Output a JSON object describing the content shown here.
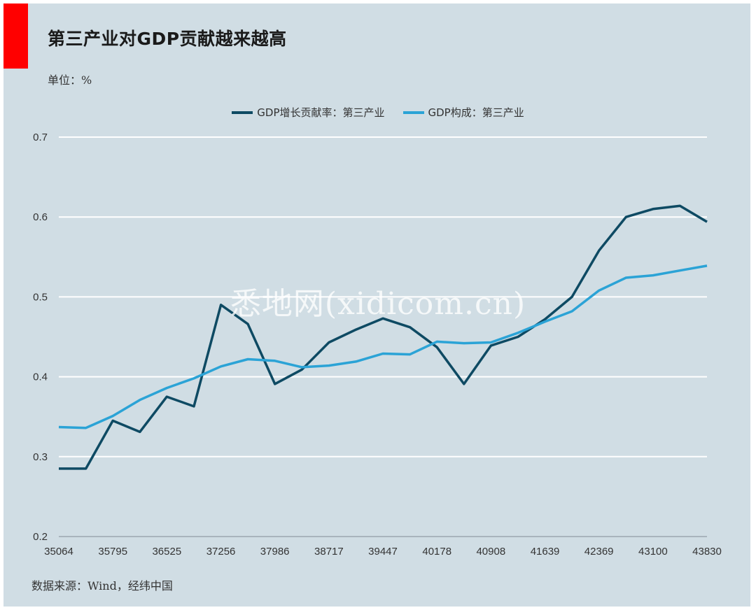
{
  "header": {
    "title": "第三产业对GDP贡献越来越高",
    "unit": "单位：%"
  },
  "footer": {
    "source": "数据来源：Wind，经纬中国"
  },
  "watermark": "悉地网(xidicom.cn)",
  "colors": {
    "background": "#d0dde4",
    "accent": "#ff0000",
    "series_dark": "#0e4a63",
    "series_light": "#2ba3d6",
    "grid": "#ffffff"
  },
  "chart_data": {
    "type": "line",
    "title": "第三产业对GDP贡献越来越高",
    "xlabel": "",
    "ylabel": "",
    "xlim": [
      35064,
      43830
    ],
    "ylim": [
      0.2,
      0.7
    ],
    "grid": true,
    "legend_position": "top-center",
    "x_ticks": [
      "35064",
      "35795",
      "36525",
      "37256",
      "37986",
      "38717",
      "39447",
      "40178",
      "40908",
      "41639",
      "42369",
      "43100",
      "43830"
    ],
    "y_ticks": [
      "0.2",
      "0.3",
      "0.4",
      "0.5",
      "0.6",
      "0.7"
    ],
    "x": [
      35064,
      35430,
      35795,
      36160,
      36525,
      36891,
      37256,
      37621,
      37986,
      38352,
      38717,
      39082,
      39447,
      39813,
      40178,
      40543,
      40908,
      41274,
      41639,
      42004,
      42369,
      42735,
      43100,
      43465,
      43830
    ],
    "series": [
      {
        "name": "GDP增长贡献率：第三产业",
        "values": [
          0.285,
          0.285,
          0.345,
          0.331,
          0.375,
          0.363,
          0.49,
          0.466,
          0.391,
          0.409,
          0.443,
          0.459,
          0.473,
          0.462,
          0.437,
          0.391,
          0.439,
          0.45,
          0.472,
          0.5,
          0.558,
          0.6,
          0.61,
          0.614,
          0.594
        ]
      },
      {
        "name": "GDP构成：第三产业",
        "values": [
          0.337,
          0.336,
          0.351,
          0.371,
          0.386,
          0.398,
          0.413,
          0.422,
          0.42,
          0.412,
          0.414,
          0.419,
          0.429,
          0.428,
          0.444,
          0.442,
          0.443,
          0.455,
          0.469,
          0.482,
          0.508,
          0.524,
          0.527,
          0.533,
          0.539
        ]
      }
    ]
  }
}
